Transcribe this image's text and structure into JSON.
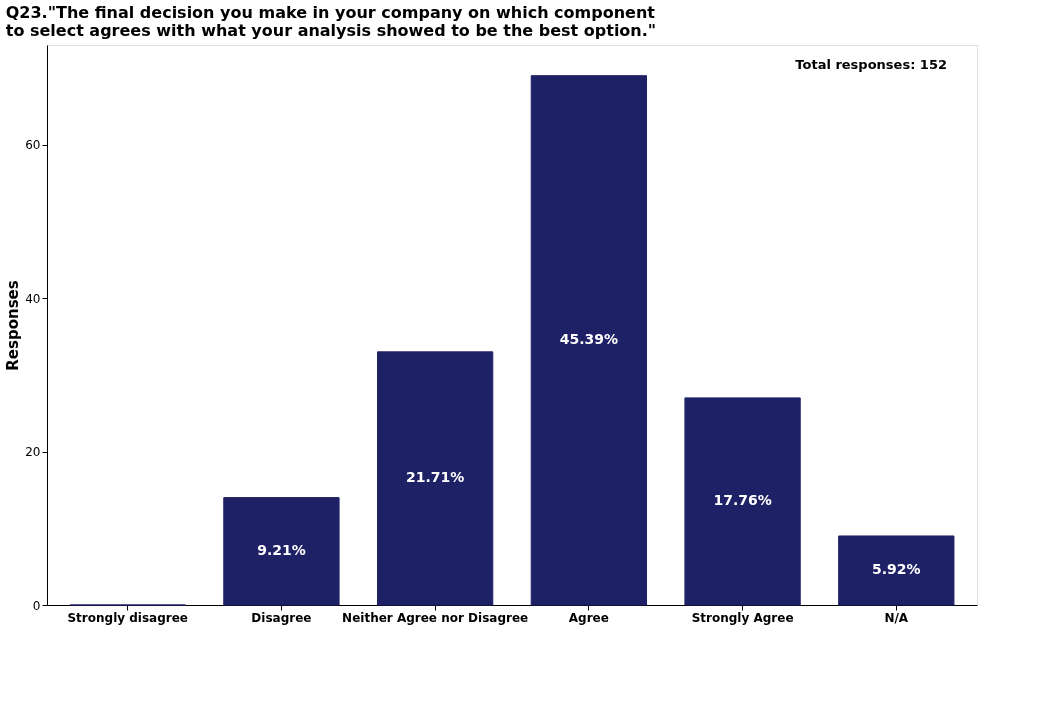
{
  "chart_data": {
    "type": "bar",
    "title": "Q23.\"The final decision you make in your company on which component\nto select agrees with what your analysis showed to be the best option.\"",
    "ylabel": "Responses",
    "categories": [
      "Strongly disagree",
      "Disagree",
      "Neither Agree nor Disagree",
      "Agree",
      "Strongly Agree",
      "N/A"
    ],
    "values": [
      0,
      14,
      33,
      69,
      27,
      9
    ],
    "color": "#1f2166",
    "ylim": [
      0,
      73
    ],
    "yticks": [
      0,
      20,
      40,
      60
    ],
    "annotations": [
      "Total responses: 152",
      "9.21%",
      "21.71%",
      "45.39%",
      "17.76%",
      "5.92%"
    ],
    "grid": false
  }
}
